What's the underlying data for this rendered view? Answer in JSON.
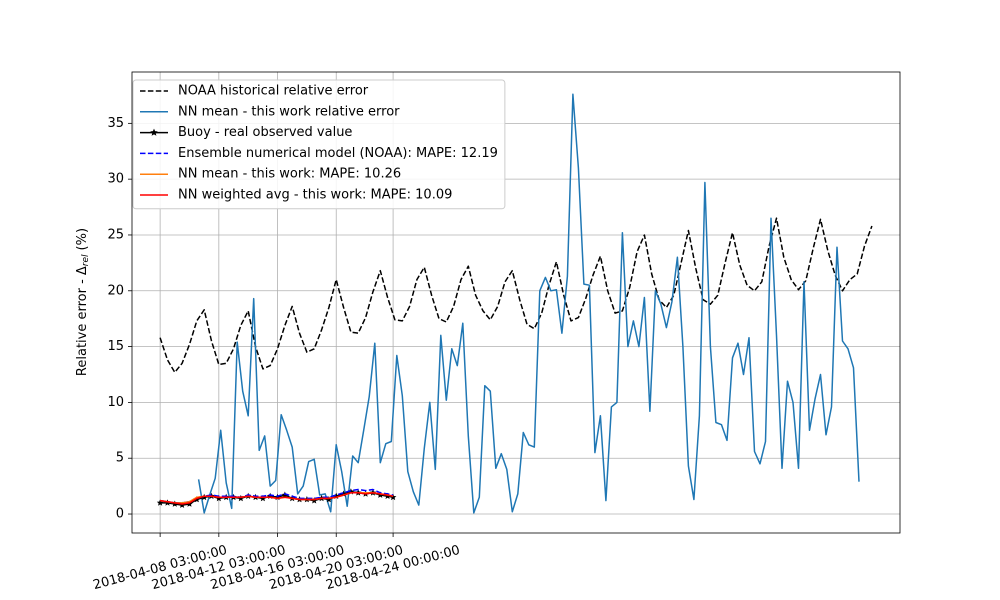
{
  "chart_data": {
    "type": "line",
    "ylabel": [
      "Relative error - Δ",
      "rel",
      "(%)"
    ],
    "xlim": [
      "2018-04-06 05:00:00",
      "2018-05-28 13:00:00"
    ],
    "xticks": [
      "2018-04-08 03:00:00",
      "2018-04-12 03:00:00",
      "2018-04-16 03:00:00",
      "2018-04-20 03:00:00",
      "2018-04-24 00:00:00"
    ],
    "ylim": [
      -1.7,
      39.6
    ],
    "yticks": [
      0,
      5,
      10,
      15,
      20,
      25,
      30,
      35
    ],
    "grid": true,
    "legend": "upper left",
    "series": [
      {
        "name": "NOAA historical relative error",
        "color": "#000000",
        "linestyle": "dashed",
        "x": [
          "2018-04-08 03:00:00",
          "2018-04-08 15:00:00",
          "2018-04-09 03:00:00",
          "2018-04-09 15:00:00",
          "2018-04-10 03:00:00",
          "2018-04-10 15:00:00",
          "2018-04-11 03:00:00",
          "2018-04-11 15:00:00",
          "2018-04-12 03:00:00",
          "2018-04-12 15:00:00",
          "2018-04-13 03:00:00",
          "2018-04-13 15:00:00",
          "2018-04-14 03:00:00",
          "2018-04-14 15:00:00",
          "2018-04-15 03:00:00",
          "2018-04-15 15:00:00",
          "2018-04-16 03:00:00",
          "2018-04-16 15:00:00",
          "2018-04-17 03:00:00",
          "2018-04-17 15:00:00",
          "2018-04-18 03:00:00",
          "2018-04-18 15:00:00",
          "2018-04-19 03:00:00",
          "2018-04-19 15:00:00",
          "2018-04-20 03:00:00",
          "2018-04-20 15:00:00",
          "2018-04-21 03:00:00",
          "2018-04-21 15:00:00",
          "2018-04-22 03:00:00",
          "2018-04-22 15:00:00",
          "2018-04-23 03:00:00",
          "2018-04-23 15:00:00",
          "2018-04-24 03:00:00",
          "2018-04-24 15:00:00",
          "2018-04-25 03:00:00",
          "2018-04-25 15:00:00",
          "2018-04-26 03:00:00",
          "2018-04-26 15:00:00",
          "2018-04-27 03:00:00",
          "2018-04-27 15:00:00",
          "2018-04-28 03:00:00",
          "2018-04-28 15:00:00",
          "2018-04-29 03:00:00",
          "2018-04-29 15:00:00",
          "2018-04-30 03:00:00",
          "2018-04-30 15:00:00",
          "2018-05-01 03:00:00",
          "2018-05-01 15:00:00",
          "2018-05-02 03:00:00",
          "2018-05-02 15:00:00",
          "2018-05-03 03:00:00",
          "2018-05-03 15:00:00",
          "2018-05-04 03:00:00",
          "2018-05-04 15:00:00",
          "2018-05-05 03:00:00",
          "2018-05-05 15:00:00",
          "2018-05-06 03:00:00",
          "2018-05-06 15:00:00",
          "2018-05-07 03:00:00",
          "2018-05-07 15:00:00",
          "2018-05-08 03:00:00",
          "2018-05-08 15:00:00",
          "2018-05-09 03:00:00",
          "2018-05-09 15:00:00",
          "2018-05-10 03:00:00",
          "2018-05-10 15:00:00",
          "2018-05-11 03:00:00",
          "2018-05-11 15:00:00",
          "2018-05-12 03:00:00",
          "2018-05-12 15:00:00",
          "2018-05-13 03:00:00",
          "2018-05-13 15:00:00",
          "2018-05-14 03:00:00",
          "2018-05-14 15:00:00",
          "2018-05-15 03:00:00",
          "2018-05-15 15:00:00",
          "2018-05-16 03:00:00",
          "2018-05-16 15:00:00",
          "2018-05-17 03:00:00",
          "2018-05-17 15:00:00",
          "2018-05-18 03:00:00",
          "2018-05-18 15:00:00",
          "2018-05-19 03:00:00",
          "2018-05-19 15:00:00",
          "2018-05-20 03:00:00",
          "2018-05-20 15:00:00",
          "2018-05-21 03:00:00",
          "2018-05-21 15:00:00",
          "2018-05-22 03:00:00",
          "2018-05-22 15:00:00",
          "2018-05-23 03:00:00",
          "2018-05-23 15:00:00",
          "2018-05-24 03:00:00",
          "2018-05-24 15:00:00",
          "2018-05-25 03:00:00",
          "2018-05-25 15:00:00",
          "2018-05-26 03:00:00",
          "2018-05-26 15:00:00"
        ],
        "values": [
          15.8,
          13.8,
          12.7,
          13.5,
          15.2,
          17.3,
          18.3,
          15.5,
          13.4,
          13.5,
          14.8,
          16.9,
          18.2,
          15.0,
          13.0,
          13.3,
          14.8,
          16.9,
          18.6,
          16.2,
          14.5,
          14.8,
          16.5,
          18.5,
          21.0,
          18.5,
          16.3,
          16.2,
          17.6,
          19.9,
          21.8,
          19.4,
          17.4,
          17.3,
          18.6,
          21.0,
          22.1,
          19.6,
          17.5,
          17.2,
          18.6,
          21.0,
          22.2,
          19.6,
          18.2,
          17.4,
          18.6,
          20.8,
          21.8,
          19.2,
          17.0,
          16.6,
          18.0,
          20.5,
          22.6,
          19.6,
          17.3,
          17.6,
          19.3,
          21.4,
          23.1,
          20.0,
          18.0,
          18.2,
          20.3,
          23.5,
          25.0,
          21.5,
          19.2,
          18.5,
          19.6,
          22.5,
          25.4,
          22.0,
          19.2,
          18.8,
          19.6,
          22.5,
          25.2,
          22.3,
          20.5,
          20.0,
          20.8,
          24.0,
          26.5,
          23.0,
          21.0,
          20.1,
          20.9,
          23.8,
          26.4,
          23.6,
          21.4,
          20.0,
          21.0,
          21.5,
          24.0,
          25.8
        ]
      },
      {
        "name": "NN mean - this work relative error",
        "color": "#1f77b4",
        "linestyle": "solid",
        "x": [
          "2018-04-10 18:00:00",
          "2018-04-11 03:00:00",
          "2018-04-11 12:00:00",
          "2018-04-11 21:00:00",
          "2018-04-12 06:00:00",
          "2018-04-12 15:00:00",
          "2018-04-13 00:00:00",
          "2018-04-13 09:00:00",
          "2018-04-13 18:00:00",
          "2018-04-14 03:00:00",
          "2018-04-14 12:00:00",
          "2018-04-14 21:00:00",
          "2018-04-15 06:00:00",
          "2018-04-15 15:00:00",
          "2018-04-16 00:00:00",
          "2018-04-16 09:00:00",
          "2018-04-16 18:00:00",
          "2018-04-17 03:00:00",
          "2018-04-17 12:00:00",
          "2018-04-17 21:00:00",
          "2018-04-18 06:00:00",
          "2018-04-18 15:00:00",
          "2018-04-19 00:00:00",
          "2018-04-19 09:00:00",
          "2018-04-19 18:00:00",
          "2018-04-20 03:00:00",
          "2018-04-20 12:00:00",
          "2018-04-20 21:00:00",
          "2018-04-21 06:00:00",
          "2018-04-21 15:00:00",
          "2018-04-22 00:00:00",
          "2018-04-22 09:00:00",
          "2018-04-22 18:00:00",
          "2018-04-23 03:00:00",
          "2018-04-23 12:00:00",
          "2018-04-23 21:00:00",
          "2018-04-24 06:00:00",
          "2018-04-24 15:00:00",
          "2018-04-25 00:00:00",
          "2018-04-25 09:00:00",
          "2018-04-25 18:00:00",
          "2018-04-26 03:00:00",
          "2018-04-26 12:00:00",
          "2018-04-26 21:00:00",
          "2018-04-27 06:00:00",
          "2018-04-27 15:00:00",
          "2018-04-28 00:00:00",
          "2018-04-28 09:00:00",
          "2018-04-28 18:00:00",
          "2018-04-29 03:00:00",
          "2018-04-29 12:00:00",
          "2018-04-29 21:00:00",
          "2018-04-30 06:00:00",
          "2018-04-30 15:00:00",
          "2018-05-01 00:00:00",
          "2018-05-01 09:00:00",
          "2018-05-01 18:00:00",
          "2018-05-02 03:00:00",
          "2018-05-02 12:00:00",
          "2018-05-02 21:00:00",
          "2018-05-03 06:00:00",
          "2018-05-03 15:00:00",
          "2018-05-04 00:00:00",
          "2018-05-04 09:00:00",
          "2018-05-04 18:00:00",
          "2018-05-05 03:00:00",
          "2018-05-05 12:00:00",
          "2018-05-05 21:00:00",
          "2018-05-06 06:00:00",
          "2018-05-06 15:00:00",
          "2018-05-07 00:00:00",
          "2018-05-07 09:00:00",
          "2018-05-07 18:00:00",
          "2018-05-08 03:00:00",
          "2018-05-08 12:00:00",
          "2018-05-08 21:00:00",
          "2018-05-09 06:00:00",
          "2018-05-09 15:00:00",
          "2018-05-10 00:00:00",
          "2018-05-10 09:00:00",
          "2018-05-10 18:00:00",
          "2018-05-11 03:00:00",
          "2018-05-11 12:00:00",
          "2018-05-11 21:00:00",
          "2018-05-12 06:00:00",
          "2018-05-12 15:00:00",
          "2018-05-13 00:00:00",
          "2018-05-13 09:00:00",
          "2018-05-13 18:00:00",
          "2018-05-14 03:00:00",
          "2018-05-14 12:00:00",
          "2018-05-14 21:00:00",
          "2018-05-15 06:00:00",
          "2018-05-15 15:00:00",
          "2018-05-16 00:00:00",
          "2018-05-16 09:00:00",
          "2018-05-16 18:00:00",
          "2018-05-17 03:00:00",
          "2018-05-17 12:00:00",
          "2018-05-17 21:00:00",
          "2018-05-18 06:00:00",
          "2018-05-18 15:00:00",
          "2018-05-19 00:00:00",
          "2018-05-19 09:00:00",
          "2018-05-19 18:00:00",
          "2018-05-20 03:00:00",
          "2018-05-20 12:00:00",
          "2018-05-20 21:00:00",
          "2018-05-21 06:00:00",
          "2018-05-21 15:00:00",
          "2018-05-22 00:00:00",
          "2018-05-22 09:00:00",
          "2018-05-22 18:00:00",
          "2018-05-23 03:00:00",
          "2018-05-23 12:00:00",
          "2018-05-23 21:00:00",
          "2018-05-24 06:00:00",
          "2018-05-24 15:00:00",
          "2018-05-25 00:00:00",
          "2018-05-25 09:00:00",
          "2018-05-25 18:00:00"
        ],
        "values": [
          3.1,
          0.1,
          1.7,
          3.2,
          7.5,
          2.8,
          0.5,
          15.4,
          11,
          8.8,
          19.3,
          5.7,
          7,
          2.5,
          3,
          8.9,
          7.5,
          6,
          1.8,
          2.5,
          4.7,
          4.9,
          1.7,
          1.8,
          0.2,
          6.2,
          3.8,
          0.7,
          5.2,
          4.6,
          7.5,
          10.5,
          15.3,
          4.6,
          6.3,
          6.5,
          14.2,
          10.6,
          3.8,
          2,
          0.8,
          5.9,
          10,
          4,
          16,
          10.2,
          14.8,
          13.3,
          17.1,
          7,
          0.1,
          1.5,
          11.5,
          11,
          4.1,
          5.4,
          4,
          0.2,
          1.8,
          7.3,
          6.2,
          6,
          20,
          21.2,
          20,
          20.1,
          16.2,
          21.3,
          37.6,
          31,
          20.6,
          20.5,
          5.5,
          8.8,
          1.2,
          9.6,
          10,
          25.2,
          15,
          17.3,
          15,
          19.4,
          9.2,
          20,
          18.8,
          16.7,
          19,
          23,
          15,
          4.3,
          1.3,
          8.8,
          29.7,
          15,
          8.2,
          8,
          6.6,
          14,
          15.3,
          12.5,
          15.8,
          5.6,
          4.5,
          6.5,
          26.5,
          16,
          4.1,
          11.9,
          10,
          4.1,
          20.8,
          7.5,
          10.3,
          12.5,
          7.1,
          9.6,
          23.9,
          15.5,
          14.8,
          13.1,
          2.9
        ]
      },
      {
        "name": "Buoy - real observed value",
        "color": "#000000",
        "linestyle": "solid",
        "marker": "star",
        "x": [
          "2018-04-08 03:00:00",
          "2018-04-08 15:00:00",
          "2018-04-09 03:00:00",
          "2018-04-09 15:00:00",
          "2018-04-10 03:00:00",
          "2018-04-10 15:00:00",
          "2018-04-11 03:00:00",
          "2018-04-11 15:00:00",
          "2018-04-12 03:00:00",
          "2018-04-12 15:00:00",
          "2018-04-13 03:00:00",
          "2018-04-13 15:00:00",
          "2018-04-14 03:00:00",
          "2018-04-14 15:00:00",
          "2018-04-15 03:00:00",
          "2018-04-15 15:00:00",
          "2018-04-16 03:00:00",
          "2018-04-16 15:00:00",
          "2018-04-17 03:00:00",
          "2018-04-17 15:00:00",
          "2018-04-18 03:00:00",
          "2018-04-18 15:00:00",
          "2018-04-19 03:00:00",
          "2018-04-19 15:00:00",
          "2018-04-20 03:00:00",
          "2018-04-20 15:00:00",
          "2018-04-21 03:00:00",
          "2018-04-21 15:00:00",
          "2018-04-22 03:00:00",
          "2018-04-22 15:00:00",
          "2018-04-23 03:00:00",
          "2018-04-23 15:00:00",
          "2018-04-24 00:00:00"
        ],
        "values": [
          1.0,
          1.0,
          0.9,
          0.8,
          0.9,
          1.3,
          1.5,
          1.6,
          1.4,
          1.5,
          1.5,
          1.4,
          1.6,
          1.5,
          1.4,
          1.6,
          1.5,
          1.7,
          1.4,
          1.3,
          1.3,
          1.2,
          1.4,
          1.3,
          1.6,
          1.8,
          2.0,
          1.9,
          1.8,
          1.9,
          1.7,
          1.6,
          1.5
        ]
      },
      {
        "name": "Ensemble numerical model (NOAA): MAPE: 12.19",
        "color": "#0000ff",
        "linestyle": "dashed",
        "x": [
          "2018-04-08 03:00:00",
          "2018-04-08 15:00:00",
          "2018-04-09 03:00:00",
          "2018-04-09 15:00:00",
          "2018-04-10 03:00:00",
          "2018-04-10 15:00:00",
          "2018-04-11 03:00:00",
          "2018-04-11 15:00:00",
          "2018-04-12 03:00:00",
          "2018-04-12 15:00:00",
          "2018-04-13 03:00:00",
          "2018-04-13 15:00:00",
          "2018-04-14 03:00:00",
          "2018-04-14 15:00:00",
          "2018-04-15 03:00:00",
          "2018-04-15 15:00:00",
          "2018-04-16 03:00:00",
          "2018-04-16 15:00:00",
          "2018-04-17 03:00:00",
          "2018-04-17 15:00:00",
          "2018-04-18 03:00:00",
          "2018-04-18 15:00:00",
          "2018-04-19 03:00:00",
          "2018-04-19 15:00:00",
          "2018-04-20 03:00:00",
          "2018-04-20 15:00:00",
          "2018-04-21 03:00:00",
          "2018-04-21 15:00:00",
          "2018-04-22 03:00:00",
          "2018-04-22 15:00:00",
          "2018-04-23 03:00:00",
          "2018-04-23 15:00:00",
          "2018-04-24 00:00:00"
        ],
        "values": [
          1.2,
          1.1,
          1.0,
          1.0,
          1.1,
          1.4,
          1.6,
          1.7,
          1.6,
          1.6,
          1.6,
          1.5,
          1.7,
          1.6,
          1.6,
          1.7,
          1.6,
          1.8,
          1.6,
          1.4,
          1.4,
          1.4,
          1.5,
          1.5,
          1.7,
          1.9,
          2.1,
          2.2,
          2.1,
          2.2,
          1.9,
          1.8,
          1.7
        ]
      },
      {
        "name": "NN mean - this work: MAPE: 10.26",
        "color": "#ff7f0e",
        "linestyle": "solid",
        "x": [
          "2018-04-08 03:00:00",
          "2018-04-08 15:00:00",
          "2018-04-09 03:00:00",
          "2018-04-09 15:00:00",
          "2018-04-10 03:00:00",
          "2018-04-10 15:00:00",
          "2018-04-11 03:00:00",
          "2018-04-11 15:00:00",
          "2018-04-12 03:00:00",
          "2018-04-12 15:00:00",
          "2018-04-13 03:00:00",
          "2018-04-13 15:00:00",
          "2018-04-14 03:00:00",
          "2018-04-14 15:00:00",
          "2018-04-15 03:00:00",
          "2018-04-15 15:00:00",
          "2018-04-16 03:00:00",
          "2018-04-16 15:00:00",
          "2018-04-17 03:00:00",
          "2018-04-17 15:00:00",
          "2018-04-18 03:00:00",
          "2018-04-18 15:00:00",
          "2018-04-19 03:00:00",
          "2018-04-19 15:00:00",
          "2018-04-20 03:00:00",
          "2018-04-20 15:00:00",
          "2018-04-21 03:00:00",
          "2018-04-21 15:00:00",
          "2018-04-22 03:00:00",
          "2018-04-22 15:00:00",
          "2018-04-23 03:00:00",
          "2018-04-23 15:00:00",
          "2018-04-24 00:00:00"
        ],
        "values": [
          1.2,
          1.1,
          1.0,
          1.0,
          1.1,
          1.5,
          1.6,
          1.6,
          1.5,
          1.5,
          1.5,
          1.5,
          1.6,
          1.5,
          1.5,
          1.5,
          1.4,
          1.5,
          1.4,
          1.3,
          1.3,
          1.3,
          1.4,
          1.4,
          1.5,
          1.7,
          1.9,
          1.9,
          1.9,
          1.9,
          1.8,
          1.7,
          1.6
        ]
      },
      {
        "name": "NN weighted avg - this work: MAPE: 10.09",
        "color": "#ff0000",
        "linestyle": "solid",
        "x": [
          "2018-04-08 03:00:00",
          "2018-04-08 15:00:00",
          "2018-04-09 03:00:00",
          "2018-04-09 15:00:00",
          "2018-04-10 03:00:00",
          "2018-04-10 15:00:00",
          "2018-04-11 03:00:00",
          "2018-04-11 15:00:00",
          "2018-04-12 03:00:00",
          "2018-04-12 15:00:00",
          "2018-04-13 03:00:00",
          "2018-04-13 15:00:00",
          "2018-04-14 03:00:00",
          "2018-04-14 15:00:00",
          "2018-04-15 03:00:00",
          "2018-04-15 15:00:00",
          "2018-04-16 03:00:00",
          "2018-04-16 15:00:00",
          "2018-04-17 03:00:00",
          "2018-04-17 15:00:00",
          "2018-04-18 03:00:00",
          "2018-04-18 15:00:00",
          "2018-04-19 03:00:00",
          "2018-04-19 15:00:00",
          "2018-04-20 03:00:00",
          "2018-04-20 15:00:00",
          "2018-04-21 03:00:00",
          "2018-04-21 15:00:00",
          "2018-04-22 03:00:00",
          "2018-04-22 15:00:00",
          "2018-04-23 03:00:00",
          "2018-04-23 15:00:00",
          "2018-04-24 00:00:00"
        ],
        "values": [
          1.2,
          1.1,
          1.0,
          0.9,
          1.0,
          1.4,
          1.6,
          1.6,
          1.5,
          1.5,
          1.5,
          1.5,
          1.6,
          1.5,
          1.5,
          1.5,
          1.4,
          1.5,
          1.4,
          1.3,
          1.3,
          1.3,
          1.4,
          1.4,
          1.5,
          1.7,
          1.9,
          1.9,
          1.8,
          1.9,
          1.8,
          1.7,
          1.6
        ]
      }
    ]
  }
}
